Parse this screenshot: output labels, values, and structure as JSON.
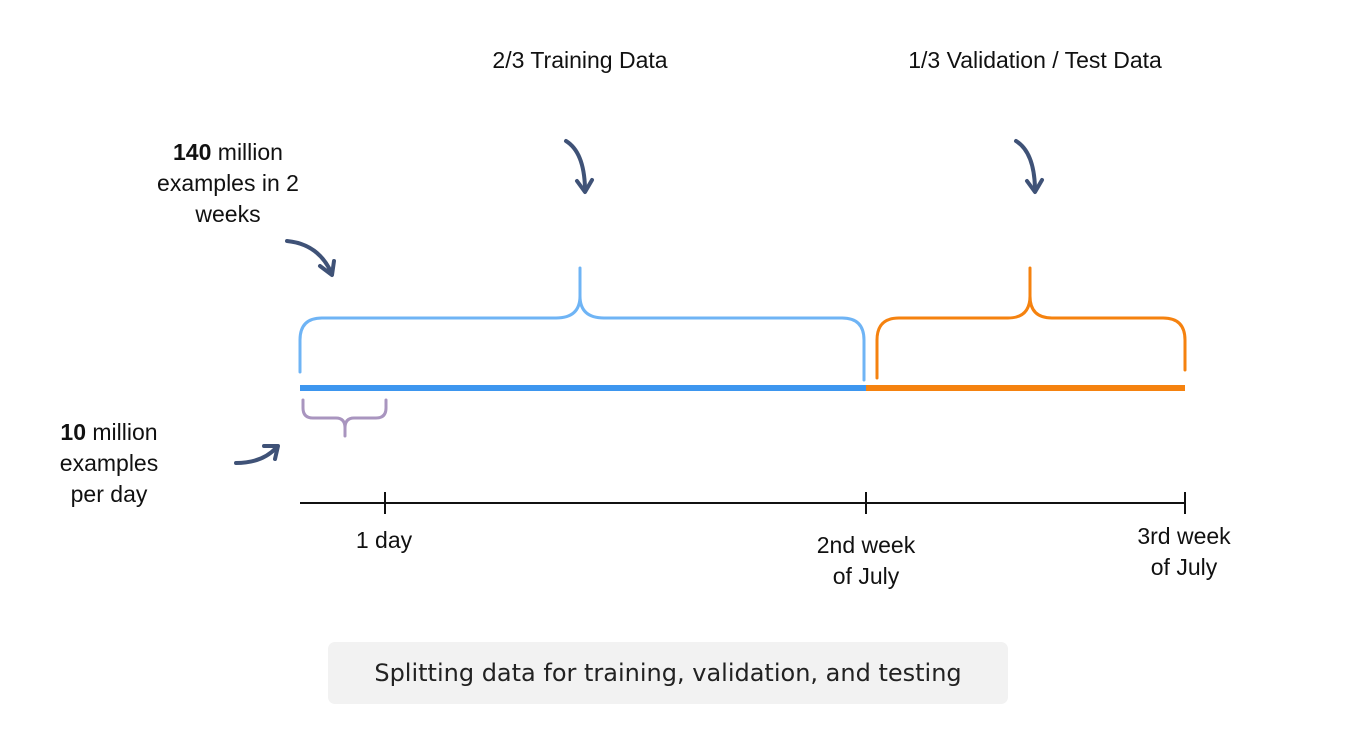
{
  "labels": {
    "training_label": "2/3 Training Data",
    "validation_label": "1/3 Validation / Test Data",
    "total_count": "140",
    "total_rest_line1": " million",
    "total_line2": "examples in 2",
    "total_line3": "weeks",
    "daily_count": "10",
    "daily_rest_line1": " million",
    "daily_line2": "examples",
    "daily_line3": "per day"
  },
  "axis": {
    "tick_1_day": "1 day",
    "tick_2nd_week_line1": "2nd week",
    "tick_2nd_week_line2": "of July",
    "tick_3rd_week_line1": "3rd week",
    "tick_3rd_week_line2": "of July"
  },
  "caption": "Splitting data for training, validation, and testing",
  "colors": {
    "training_bar": "#3d96ef",
    "training_brace": "#6fb4f5",
    "validation": "#f5820f",
    "day_brace": "#a995bf",
    "arrow": "#3f5277",
    "axis": "#111111",
    "caption_bg": "#f2f2f2"
  }
}
